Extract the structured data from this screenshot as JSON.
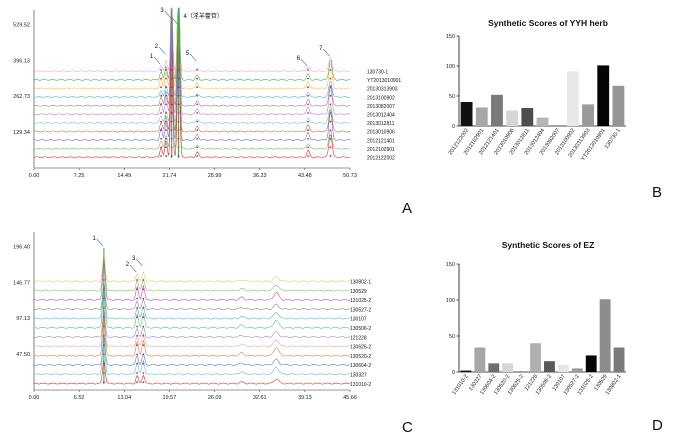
{
  "chart_data": [
    {
      "panel": "A",
      "type": "line",
      "title": "",
      "xlabel": "",
      "ylabel": "",
      "x_ticks": [
        "0.00",
        "7.25",
        "14.49",
        "21.74",
        "28.99",
        "36.23",
        "43.48",
        "50.73"
      ],
      "y_ticks": [
        "129.34",
        "262.73",
        "396.13",
        "529.52"
      ],
      "xlim": [
        0,
        50.73
      ],
      "ylim": [
        0,
        600
      ],
      "series": [
        {
          "name": "130730-1",
          "color": "#d7b0e0"
        },
        {
          "name": "YT2013010901",
          "color": "#4caf50"
        },
        {
          "name": "20130313903",
          "color": "#f0c040"
        },
        {
          "name": "2013100902",
          "color": "#4cb8e0"
        },
        {
          "name": "2013082007",
          "color": "#8a8a8a"
        },
        {
          "name": "2013012404",
          "color": "#c080d0"
        },
        {
          "name": "2013012811",
          "color": "#6fd3c0"
        },
        {
          "name": "2013010906",
          "color": "#b07050"
        },
        {
          "name": "2012121401",
          "color": "#7070d0"
        },
        {
          "name": "2012102901",
          "color": "#70c070"
        },
        {
          "name": "2012122002",
          "color": "#e03030"
        }
      ],
      "peaks": [
        {
          "label": "1",
          "x": 20.4
        },
        {
          "label": "2",
          "x": 21.2
        },
        {
          "label": "3",
          "x": 22.1
        },
        {
          "label": "4（淫羊藿苷）",
          "x": 23.2
        },
        {
          "label": "5",
          "x": 26.2
        },
        {
          "label": "6",
          "x": 44.0
        },
        {
          "label": "7",
          "x": 47.6
        }
      ]
    },
    {
      "panel": "B",
      "type": "bar",
      "title": "Synthetic Scores of  YYH herb",
      "xlabel": "",
      "ylabel": "",
      "ylim": [
        0,
        150
      ],
      "y_ticks": [
        0,
        50,
        100,
        150
      ],
      "categories": [
        "2012122002",
        "2012102901",
        "2012121401",
        "2013010906",
        "2013012811",
        "2013012404",
        "2013082007",
        "2013100902",
        "20130313903",
        "YT2013010901",
        "130730-1"
      ],
      "values": [
        40,
        31,
        52,
        26,
        30,
        14,
        0,
        91,
        36,
        101,
        67
      ],
      "colors": [
        "#111111",
        "#a6a6a6",
        "#7a7a7a",
        "#d6d6d6",
        "#4d4d4d",
        "#b5b5b5",
        "#ffffff",
        "#e8e8e8",
        "#9a9a9a",
        "#050505",
        "#959595"
      ]
    },
    {
      "panel": "C",
      "type": "line",
      "title": "",
      "xlabel": "",
      "ylabel": "",
      "x_ticks": [
        "0.00",
        "6.52",
        "13.04",
        "19.57",
        "26.09",
        "32.61",
        "39.13",
        "45.66"
      ],
      "y_ticks": [
        "47.50",
        "97.13",
        "146.77",
        "196.40"
      ],
      "xlim": [
        0,
        45.66
      ],
      "ylim": [
        0,
        220
      ],
      "series": [
        {
          "name": "130802-1",
          "color": "#d8d060"
        },
        {
          "name": "130529",
          "color": "#80c060"
        },
        {
          "name": "131025-2",
          "color": "#c050c0"
        },
        {
          "name": "130527-2",
          "color": "#8a8a8a"
        },
        {
          "name": "130107",
          "color": "#50b0e0"
        },
        {
          "name": "130506-2",
          "color": "#60c080"
        },
        {
          "name": "121228",
          "color": "#9090d0"
        },
        {
          "name": "130625-2",
          "color": "#e0a0c0"
        },
        {
          "name": "130520-2",
          "color": "#e08040"
        },
        {
          "name": "130604-2",
          "color": "#5080d0"
        },
        {
          "name": "130327",
          "color": "#60c0d0"
        },
        {
          "name": "131010-2",
          "color": "#e03030"
        }
      ],
      "peaks": [
        {
          "label": "1",
          "x": 10.1
        },
        {
          "label": "2",
          "x": 14.9
        },
        {
          "label": "3",
          "x": 15.8
        }
      ]
    },
    {
      "panel": "D",
      "type": "bar",
      "title": "Synthetic Scores of EZ",
      "xlabel": "",
      "ylabel": "",
      "ylim": [
        0,
        150
      ],
      "y_ticks": [
        0,
        50,
        100,
        150
      ],
      "categories": [
        "131010-2",
        "130327",
        "130604-2",
        "130520-2",
        "130625-2",
        "121228",
        "130506-2",
        "130107",
        "130527-2",
        "131025-2",
        "130529",
        "130802-1"
      ],
      "values": [
        2,
        34,
        12,
        12,
        0,
        40,
        15,
        10,
        5,
        23,
        101,
        34
      ],
      "colors": [
        "#111111",
        "#a6a6a6",
        "#6e6e6e",
        "#d6d6d6",
        "#ffffff",
        "#b0b0b0",
        "#5a5a5a",
        "#e6e6e6",
        "#9a9a9a",
        "#050505",
        "#8c8c8c",
        "#7a7a7a"
      ]
    }
  ],
  "panel_labels": {
    "a": "A",
    "b": "B",
    "c": "C",
    "d": "D"
  }
}
